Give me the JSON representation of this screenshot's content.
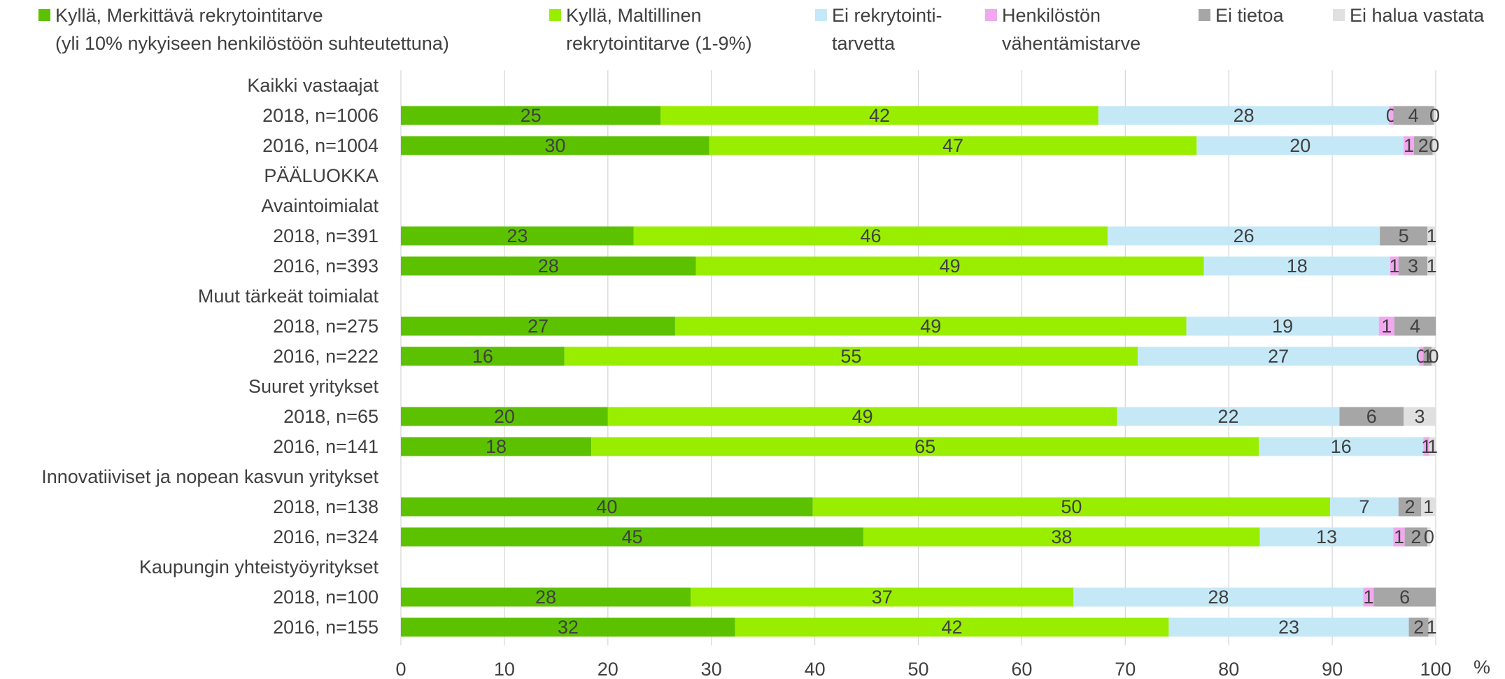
{
  "chart_data": {
    "type": "bar",
    "orientation": "horizontal",
    "stacked": true,
    "xlim": [
      0,
      100
    ],
    "xticks": [
      0,
      10,
      20,
      30,
      40,
      50,
      60,
      70,
      80,
      90,
      100
    ],
    "x_unit_label": "%",
    "grid": "vertical",
    "legend_position": "top",
    "series": [
      {
        "name": "Kyllä, Merkittävä rekrytointitarve\n(yli 10% nykyiseen henkilöstöön suhteutettuna)",
        "color": "#5cc200",
        "label_color": "#404040"
      },
      {
        "name": "Kyllä, Maltillinen\nrekrytointitarve (1-9%)",
        "color": "#99ee00",
        "label_color": "#404040"
      },
      {
        "name": "Ei rekrytointi-\ntarvetta",
        "color": "#c5e8f7",
        "label_color": "#404040"
      },
      {
        "name": "Henkilöstön\nvähentämistarve",
        "color": "#f2a8ee",
        "label_color": "#404040"
      },
      {
        "name": "Ei tietoa",
        "color": "#a6a6a6",
        "label_color": "#404040"
      },
      {
        "name": "Ei halua vastata",
        "color": "#e0e0e0",
        "label_color": "#404040"
      }
    ],
    "rows": [
      {
        "label": "Kaikki vastaajat",
        "heading": true
      },
      {
        "label": "2018, n=1006",
        "values": [
          25.1,
          42.3,
          28.1,
          0.4,
          3.9,
          0.2
        ],
        "labels": [
          "25",
          "42",
          "28",
          "0",
          "4",
          "0"
        ]
      },
      {
        "label": "2016, n=1004",
        "values": [
          29.8,
          47.1,
          20.0,
          1.0,
          1.8,
          0.3
        ],
        "labels": [
          "30",
          "47",
          "20",
          "1",
          "2",
          "0"
        ]
      },
      {
        "label": "PÄÄLUOKKA",
        "heading": true
      },
      {
        "label": "Avaintoimialat",
        "heading": true
      },
      {
        "label": "2018, n=391",
        "values": [
          22.5,
          45.8,
          26.3,
          0,
          4.6,
          0.8
        ],
        "labels": [
          "23",
          "46",
          "26",
          "",
          "5",
          "1"
        ]
      },
      {
        "label": "2016, n=393",
        "values": [
          28.5,
          49.1,
          18.0,
          0.8,
          2.8,
          0.8
        ],
        "labels": [
          "28",
          "49",
          "18",
          "1",
          "3",
          "1"
        ]
      },
      {
        "label": "Muut tärkeät toimialat",
        "heading": true
      },
      {
        "label": "2018, n=275",
        "values": [
          26.5,
          49.4,
          18.6,
          1.5,
          4.0,
          0
        ],
        "labels": [
          "27",
          "49",
          "19",
          "1",
          "4",
          ""
        ]
      },
      {
        "label": "2016, n=222",
        "values": [
          15.8,
          55.4,
          27.2,
          0.4,
          0.8,
          0.4
        ],
        "labels": [
          "16",
          "55",
          "27",
          "0",
          "1",
          "0"
        ]
      },
      {
        "label": "Suuret yritykset",
        "heading": true
      },
      {
        "label": "2018, n=65",
        "values": [
          20.0,
          49.2,
          21.5,
          0,
          6.2,
          3.1
        ],
        "labels": [
          "20",
          "49",
          "22",
          "",
          "6",
          "3"
        ]
      },
      {
        "label": "2016, n=141",
        "values": [
          18.4,
          64.5,
          15.9,
          0.6,
          0,
          0.6
        ],
        "labels": [
          "18",
          "65",
          "16",
          "1",
          "",
          "1"
        ]
      },
      {
        "label": "Innovatiiviset ja nopean kasvun yritykset",
        "heading": true
      },
      {
        "label": "2018, n=138",
        "values": [
          39.8,
          50.0,
          6.6,
          0,
          2.2,
          1.4
        ],
        "labels": [
          "40",
          "50",
          "7",
          "",
          "2",
          "1"
        ]
      },
      {
        "label": "2016, n=324",
        "values": [
          44.7,
          38.3,
          12.9,
          1.1,
          2.2,
          0.3
        ],
        "labels": [
          "45",
          "38",
          "13",
          "1",
          "2",
          "0"
        ]
      },
      {
        "label": "Kaupungin yhteistyöyritykset",
        "heading": true
      },
      {
        "label": "2018, n=100",
        "values": [
          28.0,
          37.0,
          28.0,
          1.0,
          6.0,
          0
        ],
        "labels": [
          "28",
          "37",
          "28",
          "1",
          "6",
          ""
        ]
      },
      {
        "label": "2016, n=155",
        "values": [
          32.3,
          41.9,
          23.2,
          0,
          1.9,
          0.6
        ],
        "labels": [
          "32",
          "42",
          "23",
          "",
          "2",
          "1"
        ]
      }
    ]
  }
}
